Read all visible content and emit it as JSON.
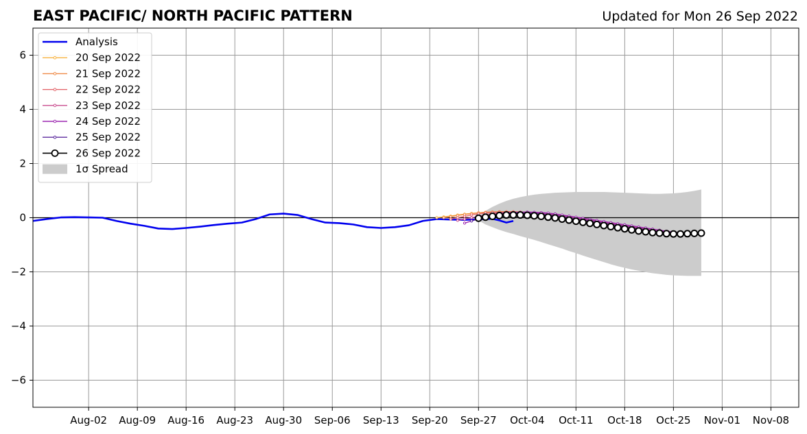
{
  "header": {
    "title": "EAST PACIFIC/ NORTH PACIFIC PATTERN",
    "updated": "Updated for Mon 26 Sep 2022"
  },
  "chart_data": {
    "type": "line",
    "title": "EAST PACIFIC/ NORTH PACIFIC PATTERN",
    "xlabel": "",
    "ylabel": "",
    "xlim": [
      "2022-07-25",
      "2022-11-12"
    ],
    "ylim": [
      -7,
      7
    ],
    "grid": true,
    "legend_position": "top-left",
    "x_ticks": [
      {
        "date": "2022-08-02",
        "label": "Aug-02"
      },
      {
        "date": "2022-08-09",
        "label": "Aug-09"
      },
      {
        "date": "2022-08-16",
        "label": "Aug-16"
      },
      {
        "date": "2022-08-23",
        "label": "Aug-23"
      },
      {
        "date": "2022-08-30",
        "label": "Aug-30"
      },
      {
        "date": "2022-09-06",
        "label": "Sep-06"
      },
      {
        "date": "2022-09-13",
        "label": "Sep-13"
      },
      {
        "date": "2022-09-20",
        "label": "Sep-20"
      },
      {
        "date": "2022-09-27",
        "label": "Sep-27"
      },
      {
        "date": "2022-10-04",
        "label": "Oct-04"
      },
      {
        "date": "2022-10-11",
        "label": "Oct-11"
      },
      {
        "date": "2022-10-18",
        "label": "Oct-18"
      },
      {
        "date": "2022-10-25",
        "label": "Oct-25"
      },
      {
        "date": "2022-11-01",
        "label": "Nov-01"
      },
      {
        "date": "2022-11-08",
        "label": "Nov-08"
      }
    ],
    "y_ticks": [
      {
        "value": 6,
        "label": "6"
      },
      {
        "value": 4,
        "label": "4"
      },
      {
        "value": 2,
        "label": "2"
      },
      {
        "value": 0,
        "label": "0"
      },
      {
        "value": -2,
        "label": "−2"
      },
      {
        "value": -4,
        "label": "−4"
      },
      {
        "value": -6,
        "label": "−6"
      }
    ],
    "analysis": {
      "name": "Analysis",
      "color": "#0000ee",
      "points": [
        [
          "2022-07-25",
          -0.12
        ],
        [
          "2022-07-27",
          -0.05
        ],
        [
          "2022-07-29",
          0.01
        ],
        [
          "2022-07-31",
          0.02
        ],
        [
          "2022-08-02",
          0.01
        ],
        [
          "2022-08-04",
          0.0
        ],
        [
          "2022-08-06",
          -0.12
        ],
        [
          "2022-08-08",
          -0.22
        ],
        [
          "2022-08-10",
          -0.3
        ],
        [
          "2022-08-12",
          -0.4
        ],
        [
          "2022-08-14",
          -0.42
        ],
        [
          "2022-08-16",
          -0.38
        ],
        [
          "2022-08-18",
          -0.33
        ],
        [
          "2022-08-20",
          -0.27
        ],
        [
          "2022-08-22",
          -0.22
        ],
        [
          "2022-08-24",
          -0.18
        ],
        [
          "2022-08-26",
          -0.05
        ],
        [
          "2022-08-28",
          0.12
        ],
        [
          "2022-08-30",
          0.15
        ],
        [
          "2022-09-01",
          0.1
        ],
        [
          "2022-09-03",
          -0.05
        ],
        [
          "2022-09-05",
          -0.18
        ],
        [
          "2022-09-07",
          -0.2
        ],
        [
          "2022-09-09",
          -0.25
        ],
        [
          "2022-09-11",
          -0.35
        ],
        [
          "2022-09-13",
          -0.38
        ],
        [
          "2022-09-15",
          -0.35
        ],
        [
          "2022-09-17",
          -0.28
        ],
        [
          "2022-09-19",
          -0.12
        ],
        [
          "2022-09-21",
          -0.05
        ],
        [
          "2022-09-23",
          -0.07
        ],
        [
          "2022-09-25",
          -0.08
        ],
        [
          "2022-09-27",
          -0.06
        ],
        [
          "2022-09-29",
          -0.04
        ],
        [
          "2022-09-30",
          -0.1
        ],
        [
          "2022-10-01",
          -0.18
        ],
        [
          "2022-10-02",
          -0.12
        ]
      ]
    },
    "forecasts": [
      {
        "name": "20 Sep 2022",
        "color": "#f7b03c",
        "start": "2022-09-21",
        "values": [
          0.0,
          0.03,
          0.06,
          0.1,
          0.13,
          0.16,
          0.18,
          0.2,
          0.21,
          0.22,
          0.22,
          0.22,
          0.21,
          0.2,
          0.18,
          0.15,
          0.12,
          0.08,
          0.04,
          0.0,
          -0.04,
          -0.08,
          -0.12,
          -0.16,
          -0.2,
          -0.24,
          -0.28,
          -0.32,
          -0.36,
          -0.4,
          -0.44,
          -0.48,
          -0.52,
          -0.55
        ]
      },
      {
        "name": "21 Sep 2022",
        "color": "#ef8a47",
        "start": "2022-09-22",
        "values": [
          0.0,
          0.04,
          0.08,
          0.12,
          0.15,
          0.18,
          0.2,
          0.21,
          0.22,
          0.22,
          0.22,
          0.21,
          0.19,
          0.17,
          0.14,
          0.1,
          0.06,
          0.02,
          -0.02,
          -0.06,
          -0.1,
          -0.14,
          -0.18,
          -0.22,
          -0.26,
          -0.3,
          -0.34,
          -0.38,
          -0.42,
          -0.46,
          -0.5,
          -0.53,
          -0.56,
          -0.58
        ]
      },
      {
        "name": "22 Sep 2022",
        "color": "#e3656b",
        "start": "2022-09-23",
        "values": [
          -0.05,
          0.0,
          0.05,
          0.1,
          0.14,
          0.17,
          0.19,
          0.2,
          0.21,
          0.21,
          0.2,
          0.19,
          0.17,
          0.14,
          0.11,
          0.07,
          0.03,
          -0.01,
          -0.05,
          -0.09,
          -0.13,
          -0.17,
          -0.21,
          -0.25,
          -0.29,
          -0.33,
          -0.37,
          -0.41,
          -0.45,
          -0.49,
          -0.52,
          -0.55,
          -0.57,
          -0.58
        ]
      },
      {
        "name": "23 Sep 2022",
        "color": "#c94c8e",
        "start": "2022-09-24",
        "values": [
          -0.1,
          -0.05,
          0.0,
          0.05,
          0.1,
          0.14,
          0.17,
          0.19,
          0.2,
          0.2,
          0.2,
          0.19,
          0.17,
          0.14,
          0.11,
          0.07,
          0.03,
          -0.01,
          -0.05,
          -0.09,
          -0.13,
          -0.17,
          -0.21,
          -0.25,
          -0.29,
          -0.33,
          -0.37,
          -0.41,
          -0.45,
          -0.49,
          -0.52,
          -0.55,
          -0.57,
          -0.58
        ]
      },
      {
        "name": "24 Sep 2022",
        "color": "#9c27b0",
        "start": "2022-09-25",
        "values": [
          -0.2,
          -0.12,
          -0.04,
          0.03,
          0.09,
          0.14,
          0.17,
          0.19,
          0.2,
          0.21,
          0.2,
          0.19,
          0.17,
          0.14,
          0.1,
          0.06,
          0.02,
          -0.02,
          -0.06,
          -0.1,
          -0.14,
          -0.18,
          -0.22,
          -0.26,
          -0.3,
          -0.34,
          -0.38,
          -0.42,
          -0.46,
          -0.5,
          -0.53,
          -0.56,
          -0.58
        ]
      },
      {
        "name": "25 Sep 2022",
        "color": "#5b2a9e",
        "start": "2022-09-26",
        "values": [
          -0.12,
          -0.05,
          0.02,
          0.08,
          0.12,
          0.15,
          0.17,
          0.17,
          0.17,
          0.16,
          0.14,
          0.11,
          0.08,
          0.04,
          0.0,
          -0.04,
          -0.08,
          -0.12,
          -0.16,
          -0.2,
          -0.24,
          -0.28,
          -0.32,
          -0.36,
          -0.4,
          -0.44,
          -0.48,
          -0.51,
          -0.54,
          -0.56,
          -0.58,
          -0.59
        ]
      },
      {
        "name": "26 Sep 2022",
        "color": "#000000",
        "start": "2022-09-27",
        "marker": "open-circle",
        "values": [
          -0.02,
          0.02,
          0.05,
          0.08,
          0.1,
          0.1,
          0.1,
          0.09,
          0.07,
          0.05,
          0.02,
          -0.01,
          -0.05,
          -0.09,
          -0.13,
          -0.17,
          -0.21,
          -0.25,
          -0.29,
          -0.33,
          -0.37,
          -0.41,
          -0.45,
          -0.49,
          -0.52,
          -0.55,
          -0.57,
          -0.59,
          -0.6,
          -0.6,
          -0.59,
          -0.58,
          -0.57
        ]
      }
    ],
    "spread": {
      "name": "1σ Spread",
      "color": "#cccccc",
      "start": "2022-09-27",
      "upper": [
        0.05,
        0.25,
        0.4,
        0.52,
        0.62,
        0.7,
        0.76,
        0.81,
        0.85,
        0.88,
        0.9,
        0.92,
        0.93,
        0.94,
        0.95,
        0.95,
        0.95,
        0.95,
        0.95,
        0.94,
        0.93,
        0.92,
        0.91,
        0.9,
        0.89,
        0.88,
        0.88,
        0.89,
        0.9,
        0.92,
        0.95,
        0.99,
        1.04
      ],
      "lower": [
        -0.1,
        -0.25,
        -0.35,
        -0.45,
        -0.53,
        -0.6,
        -0.68,
        -0.75,
        -0.82,
        -0.9,
        -0.98,
        -1.06,
        -1.14,
        -1.23,
        -1.31,
        -1.4,
        -1.48,
        -1.56,
        -1.64,
        -1.72,
        -1.79,
        -1.85,
        -1.91,
        -1.96,
        -2.01,
        -2.05,
        -2.08,
        -2.11,
        -2.13,
        -2.14,
        -2.15,
        -2.15,
        -2.15
      ]
    }
  }
}
